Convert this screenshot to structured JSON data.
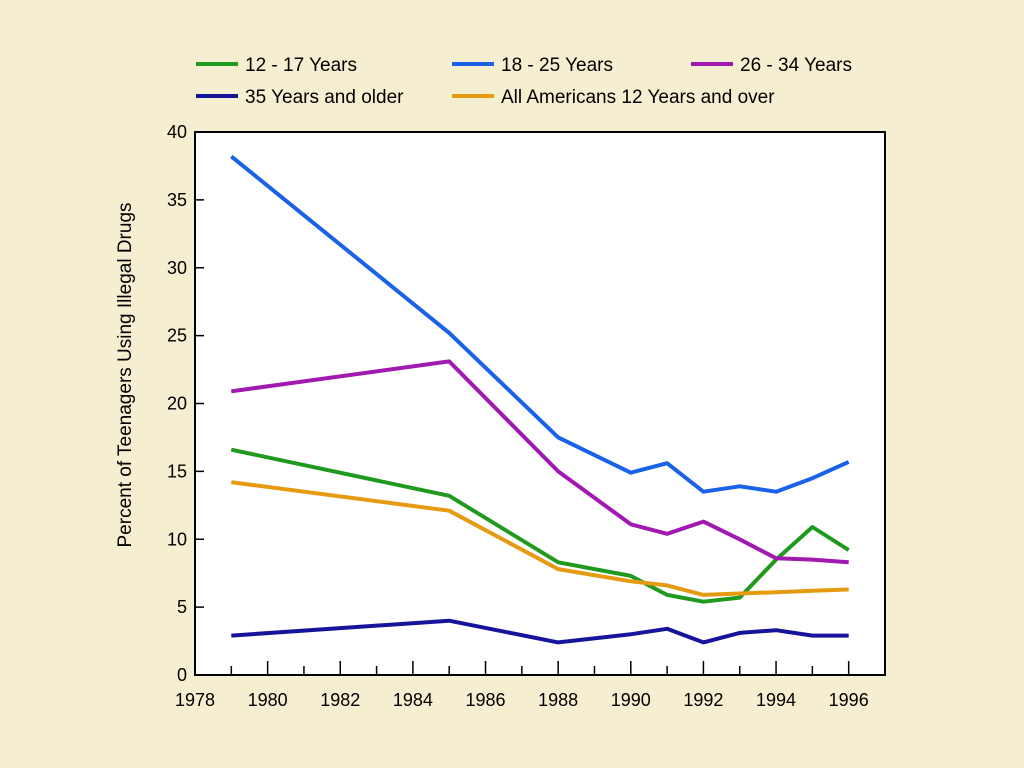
{
  "chart_data": {
    "type": "line",
    "title": "",
    "xlabel": "",
    "ylabel": "Percent of Teenagers Using Illegal Drugs",
    "xlim": [
      1978,
      1997
    ],
    "ylim": [
      0,
      40
    ],
    "x_ticks": [
      "1978",
      "1980",
      "1982",
      "1984",
      "1986",
      "1988",
      "1990",
      "1992",
      "1994",
      "1996"
    ],
    "y_ticks": [
      "0",
      "5",
      "10",
      "15",
      "20",
      "25",
      "30",
      "35",
      "40"
    ],
    "grid": false,
    "legend_position": "top",
    "series": [
      {
        "name": "12 - 17 Years",
        "color": "#1f9a1f",
        "x": [
          1979,
          1985,
          1988,
          1990,
          1991,
          1992,
          1993,
          1994,
          1995,
          1996
        ],
        "y": [
          16.6,
          13.2,
          8.3,
          7.3,
          5.9,
          5.4,
          5.7,
          8.5,
          10.9,
          9.2
        ]
      },
      {
        "name": "18 - 25 Years",
        "color": "#1a62e8",
        "x": [
          1979,
          1985,
          1988,
          1990,
          1991,
          1992,
          1993,
          1994,
          1995,
          1996
        ],
        "y": [
          38.2,
          25.2,
          17.5,
          14.9,
          15.6,
          13.5,
          13.9,
          13.5,
          14.5,
          15.7
        ]
      },
      {
        "name": "26 - 34 Years",
        "color": "#a019b0",
        "x": [
          1979,
          1985,
          1988,
          1990,
          1991,
          1992,
          1993,
          1994,
          1995,
          1996
        ],
        "y": [
          20.9,
          23.1,
          15.0,
          11.1,
          10.4,
          11.3,
          10.0,
          8.6,
          8.5,
          8.3
        ]
      },
      {
        "name": "35 Years and older",
        "color": "#16149a",
        "x": [
          1979,
          1985,
          1988,
          1990,
          1991,
          1992,
          1993,
          1994,
          1995,
          1996
        ],
        "y": [
          2.9,
          4.0,
          2.4,
          3.0,
          3.4,
          2.4,
          3.1,
          3.3,
          2.9,
          2.9
        ]
      },
      {
        "name": "All Americans 12 Years and over",
        "color": "#e69a10",
        "x": [
          1979,
          1985,
          1988,
          1990,
          1991,
          1992,
          1993,
          1994,
          1995,
          1996
        ],
        "y": [
          14.2,
          12.1,
          7.8,
          6.9,
          6.6,
          5.9,
          6.0,
          6.1,
          6.2,
          6.3
        ]
      }
    ]
  }
}
